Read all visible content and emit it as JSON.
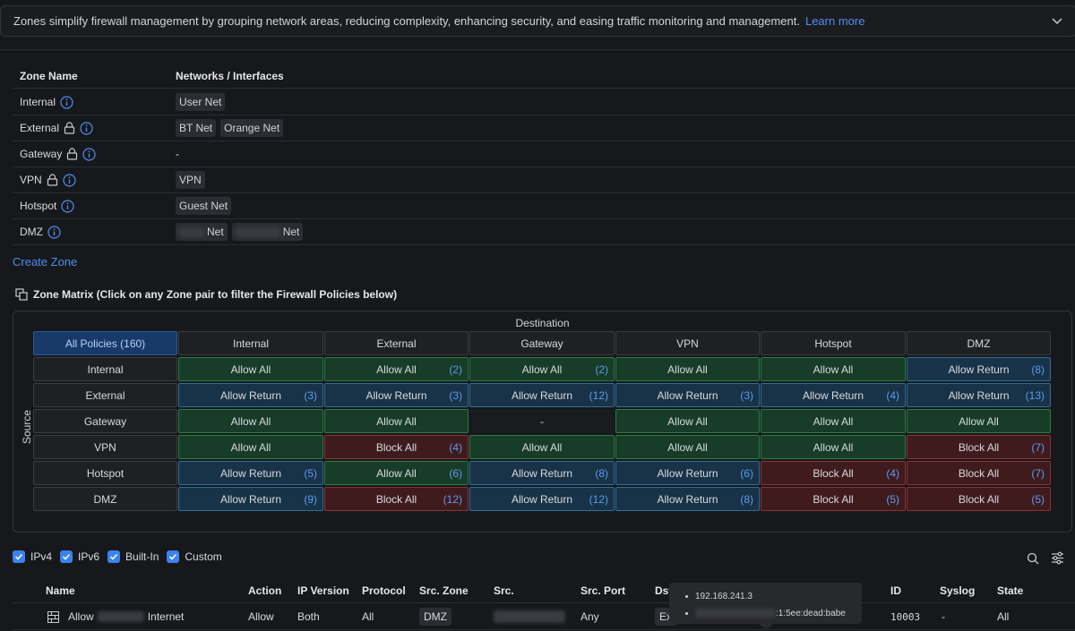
{
  "banner": {
    "text": "Zones simplify firewall management by grouping network areas, reducing complexity, enhancing security, and easing traffic monitoring and management.",
    "link": "Learn more"
  },
  "zones_table": {
    "headers": [
      "Zone Name",
      "Networks / Interfaces"
    ],
    "rows": [
      {
        "name": "Internal",
        "locked": false,
        "networks": [
          "User Net"
        ]
      },
      {
        "name": "External",
        "locked": true,
        "networks": [
          "BT Net",
          "Orange Net"
        ]
      },
      {
        "name": "Gateway",
        "locked": true,
        "networks": [],
        "empty_text": "-"
      },
      {
        "name": "VPN",
        "locked": true,
        "networks": [
          "VPN"
        ]
      },
      {
        "name": "Hotspot",
        "locked": false,
        "networks": [
          "Guest Net"
        ]
      },
      {
        "name": "DMZ",
        "locked": false,
        "networks": [
          "Net",
          "Net"
        ]
      }
    ],
    "create_link": "Create Zone"
  },
  "zone_matrix": {
    "title": "Zone Matrix (Click on any Zone pair to filter the Firewall Policies below)",
    "destination_label": "Destination",
    "source_label": "Source",
    "all_policies_label": "All Policies (160)",
    "columns": [
      "Internal",
      "External",
      "Gateway",
      "VPN",
      "Hotspot",
      "DMZ"
    ],
    "rows": [
      {
        "name": "Internal",
        "cells": [
          {
            "label": "Allow All",
            "count": "",
            "type": "green"
          },
          {
            "label": "Allow All",
            "count": "(2)",
            "type": "green"
          },
          {
            "label": "Allow All",
            "count": "(2)",
            "type": "green"
          },
          {
            "label": "Allow All",
            "count": "",
            "type": "green"
          },
          {
            "label": "Allow All",
            "count": "",
            "type": "green"
          },
          {
            "label": "Allow Return",
            "count": "(8)",
            "type": "blue"
          }
        ]
      },
      {
        "name": "External",
        "cells": [
          {
            "label": "Allow Return",
            "count": "(3)",
            "type": "blue"
          },
          {
            "label": "Allow Return",
            "count": "(3)",
            "type": "blue"
          },
          {
            "label": "Allow Return",
            "count": "(12)",
            "type": "blue"
          },
          {
            "label": "Allow Return",
            "count": "(3)",
            "type": "blue"
          },
          {
            "label": "Allow Return",
            "count": "(4)",
            "type": "blue"
          },
          {
            "label": "Allow Return",
            "count": "(13)",
            "type": "blue"
          }
        ]
      },
      {
        "name": "Gateway",
        "cells": [
          {
            "label": "Allow All",
            "count": "",
            "type": "green"
          },
          {
            "label": "Allow All",
            "count": "",
            "type": "green"
          },
          {
            "label": "-",
            "count": "",
            "type": "none"
          },
          {
            "label": "Allow All",
            "count": "",
            "type": "green"
          },
          {
            "label": "Allow All",
            "count": "",
            "type": "green"
          },
          {
            "label": "Allow All",
            "count": "",
            "type": "green"
          }
        ]
      },
      {
        "name": "VPN",
        "cells": [
          {
            "label": "Allow All",
            "count": "",
            "type": "green"
          },
          {
            "label": "Block All",
            "count": "(4)",
            "type": "red"
          },
          {
            "label": "Allow All",
            "count": "",
            "type": "green"
          },
          {
            "label": "Allow All",
            "count": "",
            "type": "green"
          },
          {
            "label": "Allow All",
            "count": "",
            "type": "green"
          },
          {
            "label": "Block All",
            "count": "(7)",
            "type": "red"
          }
        ]
      },
      {
        "name": "Hotspot",
        "cells": [
          {
            "label": "Allow Return",
            "count": "(5)",
            "type": "blue"
          },
          {
            "label": "Allow All",
            "count": "(6)",
            "type": "green"
          },
          {
            "label": "Allow Return",
            "count": "(8)",
            "type": "blue"
          },
          {
            "label": "Allow Return",
            "count": "(6)",
            "type": "blue"
          },
          {
            "label": "Block All",
            "count": "(4)",
            "type": "red"
          },
          {
            "label": "Block All",
            "count": "(7)",
            "type": "red"
          }
        ]
      },
      {
        "name": "DMZ",
        "cells": [
          {
            "label": "Allow Return",
            "count": "(9)",
            "type": "blue"
          },
          {
            "label": "Block All",
            "count": "(12)",
            "type": "red"
          },
          {
            "label": "Allow Return",
            "count": "(12)",
            "type": "blue"
          },
          {
            "label": "Allow Return",
            "count": "(8)",
            "type": "blue"
          },
          {
            "label": "Block All",
            "count": "(5)",
            "type": "red"
          },
          {
            "label": "Block All",
            "count": "(5)",
            "type": "red"
          }
        ]
      }
    ]
  },
  "filters": [
    {
      "label": "IPv4",
      "checked": true
    },
    {
      "label": "IPv6",
      "checked": true
    },
    {
      "label": "Built-In",
      "checked": true
    },
    {
      "label": "Custom",
      "checked": true
    }
  ],
  "policies": {
    "headers": {
      "name": "Name",
      "action": "Action",
      "ip_version": "IP Version",
      "protocol": "Protocol",
      "src_zone": "Src. Zone",
      "src": "Src.",
      "src_port": "Src. Port",
      "dst": "Dst",
      "id": "ID",
      "syslog": "Syslog",
      "state": "State"
    },
    "row": {
      "name_a": "Allow",
      "name_b": "Internet",
      "action": "Allow",
      "ip_version": "Both",
      "protocol": "All",
      "src_zone": "DMZ",
      "src_port": "Any",
      "dst": "Ex",
      "id": "10003",
      "syslog": "-",
      "state": "All"
    }
  },
  "tooltip": {
    "line1": "192.168.241.3",
    "line2": ":1:5ee:dead:babe"
  },
  "colors": {
    "accent": "#4e8ef0",
    "allow_all": "#173c28",
    "allow_return": "#183247",
    "block_all": "#3f1b1e"
  }
}
